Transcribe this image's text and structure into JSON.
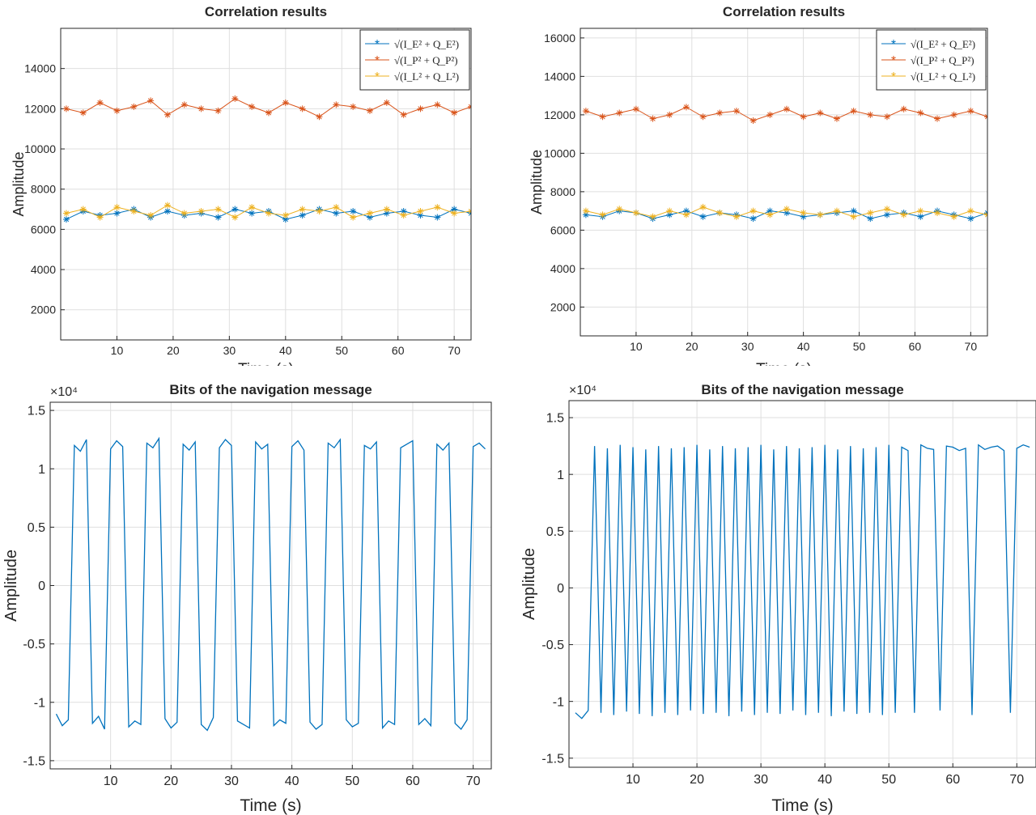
{
  "chart_data": [
    {
      "type": "line",
      "title": "Correlation results",
      "xlabel": "Time (s)",
      "ylabel": "Amplitude",
      "marker": "*",
      "grid": true,
      "legend": "northeast",
      "xlim": [
        0,
        73
      ],
      "xticks": [
        10,
        20,
        30,
        40,
        50,
        60,
        70
      ],
      "ylim": [
        500,
        16000
      ],
      "yticks": [
        2000,
        4000,
        6000,
        8000,
        10000,
        12000,
        14000
      ],
      "x": [
        1,
        4,
        7,
        10,
        13,
        16,
        19,
        22,
        25,
        28,
        31,
        34,
        37,
        40,
        43,
        46,
        49,
        52,
        55,
        58,
        61,
        64,
        67,
        70,
        73
      ],
      "series": [
        {
          "name": "√(I_E² + Q_E²)",
          "color": "#0072BD",
          "values": [
            6500,
            6900,
            6700,
            6800,
            7000,
            6600,
            6900,
            6700,
            6800,
            6600,
            7000,
            6800,
            6900,
            6500,
            6700,
            7000,
            6800,
            6900,
            6600,
            6800,
            6900,
            6700,
            6600,
            7000,
            6800
          ]
        },
        {
          "name": "√(I_P² + Q_P²)",
          "color": "#D95319",
          "values": [
            12000,
            11800,
            12300,
            11900,
            12100,
            12400,
            11700,
            12200,
            12000,
            11900,
            12500,
            12100,
            11800,
            12300,
            12000,
            11600,
            12200,
            12100,
            11900,
            12300,
            11700,
            12000,
            12200,
            11800,
            12100
          ]
        },
        {
          "name": "√(I_L² + Q_L²)",
          "color": "#EDB120",
          "values": [
            6800,
            7000,
            6600,
            7100,
            6900,
            6700,
            7200,
            6800,
            6900,
            7000,
            6600,
            7100,
            6800,
            6700,
            7000,
            6900,
            7100,
            6600,
            6800,
            7000,
            6700,
            6900,
            7100,
            6800,
            6900
          ]
        }
      ]
    },
    {
      "type": "line",
      "title": "Correlation results",
      "xlabel": "Time (s)",
      "ylabel": "Amplitude",
      "marker": "*",
      "grid": true,
      "legend": "northeast",
      "xlim": [
        0,
        73
      ],
      "xticks": [
        10,
        20,
        30,
        40,
        50,
        60,
        70
      ],
      "ylim": [
        500,
        16500
      ],
      "yticks": [
        2000,
        4000,
        6000,
        8000,
        10000,
        12000,
        14000,
        16000
      ],
      "x": [
        1,
        4,
        7,
        10,
        13,
        16,
        19,
        22,
        25,
        28,
        31,
        34,
        37,
        40,
        43,
        46,
        49,
        52,
        55,
        58,
        61,
        64,
        67,
        70,
        73
      ],
      "series": [
        {
          "name": "√(I_E² + Q_E²)",
          "color": "#0072BD",
          "values": [
            6800,
            6700,
            7000,
            6900,
            6600,
            6800,
            7000,
            6700,
            6900,
            6800,
            6600,
            7000,
            6900,
            6700,
            6800,
            6900,
            7000,
            6600,
            6800,
            6900,
            6700,
            7000,
            6800,
            6600,
            6900
          ]
        },
        {
          "name": "√(I_P² + Q_P²)",
          "color": "#D95319",
          "values": [
            12200,
            11900,
            12100,
            12300,
            11800,
            12000,
            12400,
            11900,
            12100,
            12200,
            11700,
            12000,
            12300,
            11900,
            12100,
            11800,
            12200,
            12000,
            11900,
            12300,
            12100,
            11800,
            12000,
            12200,
            11900
          ]
        },
        {
          "name": "√(I_L² + Q_L²)",
          "color": "#EDB120",
          "values": [
            7000,
            6800,
            7100,
            6900,
            6700,
            7000,
            6800,
            7200,
            6900,
            6700,
            7000,
            6800,
            7100,
            6900,
            6800,
            7000,
            6700,
            6900,
            7100,
            6800,
            7000,
            6900,
            6700,
            7000,
            6800
          ]
        }
      ]
    },
    {
      "type": "line",
      "title": "Bits of the navigation message",
      "xlabel": "Time (s)",
      "ylabel": "Amplitude",
      "exponent": "×10⁴",
      "grid": true,
      "xlim": [
        0,
        73
      ],
      "xticks": [
        10,
        20,
        30,
        40,
        50,
        60,
        70
      ],
      "ylim": [
        -15700,
        15700
      ],
      "yticks": [
        {
          "value": -15000,
          "label": "-1.5"
        },
        {
          "value": -10000,
          "label": "-1"
        },
        {
          "value": -5000,
          "label": "-0.5"
        },
        0,
        {
          "value": 5000,
          "label": "0.5"
        },
        {
          "value": 10000,
          "label": "1"
        },
        {
          "value": 15000,
          "label": "1.5"
        }
      ],
      "x": [
        1,
        2,
        3,
        4,
        5,
        6,
        7,
        8,
        9,
        10,
        11,
        12,
        13,
        14,
        15,
        16,
        17,
        18,
        19,
        20,
        21,
        22,
        23,
        24,
        25,
        26,
        27,
        28,
        29,
        30,
        31,
        32,
        33,
        34,
        35,
        36,
        37,
        38,
        39,
        40,
        41,
        42,
        43,
        44,
        45,
        46,
        47,
        48,
        49,
        50,
        51,
        52,
        53,
        54,
        55,
        56,
        57,
        58,
        59,
        60,
        61,
        62,
        63,
        64,
        65,
        66,
        67,
        68,
        69,
        70,
        71,
        72
      ],
      "series": [
        {
          "name": "bits",
          "color": "#0072BD",
          "values": [
            -11000,
            -12000,
            -11500,
            12000,
            11500,
            12500,
            -11800,
            -11200,
            -12300,
            11700,
            12400,
            11900,
            -12100,
            -11600,
            -11900,
            12200,
            11800,
            12600,
            -11400,
            -12200,
            -11700,
            12100,
            11600,
            12300,
            -11900,
            -12400,
            -11300,
            11800,
            12500,
            12000,
            -11600,
            -11900,
            -12200,
            12300,
            11700,
            12100,
            -12000,
            -11500,
            -11800,
            11900,
            12400,
            11600,
            -11700,
            -12300,
            -11900,
            12200,
            11800,
            12500,
            -11500,
            -12100,
            -11800,
            12000,
            11700,
            12300,
            -12200,
            -11600,
            -11900,
            11800,
            12100,
            12400,
            -11900,
            -11400,
            -12000,
            12100,
            11600,
            12200,
            -11800,
            -12300,
            -11500,
            11900,
            12200,
            11700
          ]
        }
      ]
    },
    {
      "type": "line",
      "title": "Bits of the navigation message",
      "xlabel": "Time (s)",
      "ylabel": "Amplitude",
      "exponent": "×10⁴",
      "grid": true,
      "xlim": [
        0,
        73
      ],
      "xticks": [
        10,
        20,
        30,
        40,
        50,
        60,
        70
      ],
      "ylim": [
        -15800,
        16500
      ],
      "yticks": [
        {
          "value": -15000,
          "label": "-1.5"
        },
        {
          "value": -10000,
          "label": "-1"
        },
        {
          "value": -5000,
          "label": "-0.5"
        },
        0,
        {
          "value": 5000,
          "label": "0.5"
        },
        {
          "value": 10000,
          "label": "1"
        },
        {
          "value": 15000,
          "label": "1.5"
        }
      ],
      "x": [
        1,
        2,
        3,
        4,
        5,
        6,
        7,
        8,
        9,
        10,
        11,
        12,
        13,
        14,
        15,
        16,
        17,
        18,
        19,
        20,
        21,
        22,
        23,
        24,
        25,
        26,
        27,
        28,
        29,
        30,
        31,
        32,
        33,
        34,
        35,
        36,
        37,
        38,
        39,
        40,
        41,
        42,
        43,
        44,
        45,
        46,
        47,
        48,
        49,
        50,
        51,
        52,
        53,
        54,
        55,
        56,
        57,
        58,
        59,
        60,
        61,
        62,
        63,
        64,
        65,
        66,
        67,
        68,
        69,
        70,
        71,
        72
      ],
      "series": [
        {
          "name": "bits",
          "color": "#0072BD",
          "values": [
            -11000,
            -11500,
            -10800,
            12500,
            -11000,
            12300,
            -11200,
            12600,
            -10900,
            12400,
            -11100,
            12200,
            -11300,
            12500,
            -11000,
            12300,
            -11200,
            12400,
            -10800,
            12600,
            -11100,
            12200,
            -11000,
            12500,
            -11300,
            12300,
            -10900,
            12400,
            -11200,
            12600,
            -11000,
            12200,
            -11100,
            12500,
            -10800,
            12300,
            -11200,
            12400,
            -11000,
            12600,
            -11300,
            12200,
            -10900,
            12500,
            -11100,
            12300,
            -11000,
            12400,
            -11200,
            12600,
            -11000,
            12400,
            12100,
            -11000,
            12600,
            12300,
            12200,
            -10800,
            12500,
            12400,
            12100,
            12300,
            -11200,
            12600,
            12200,
            12400,
            12500,
            12100,
            -11000,
            12300,
            12600,
            12400
          ]
        }
      ]
    }
  ]
}
